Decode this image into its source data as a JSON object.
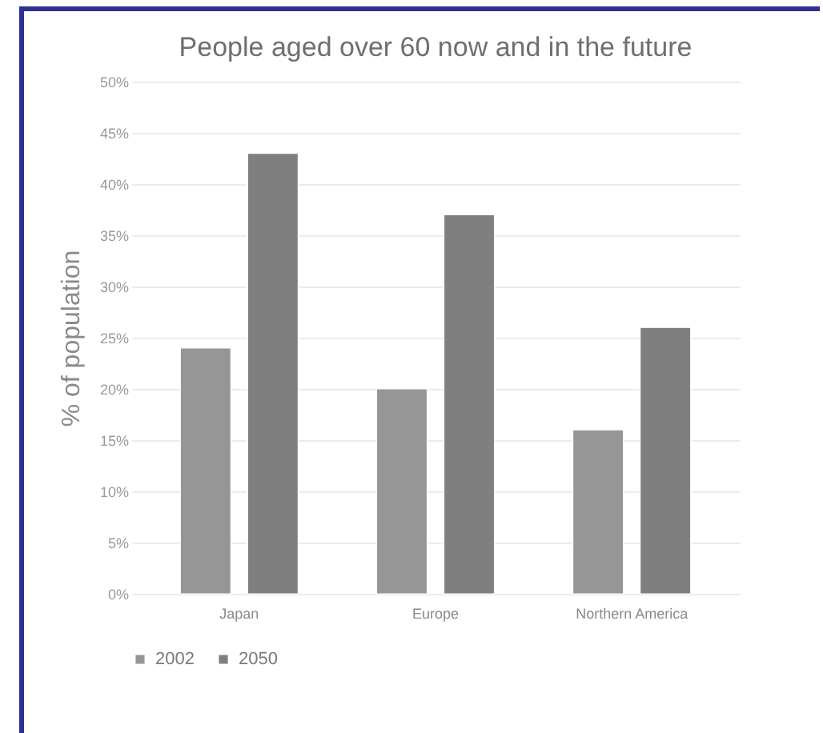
{
  "chart_data": {
    "type": "bar",
    "title": "People aged over 60 now and in the future",
    "ylabel": "% of population",
    "categories": [
      "Japan",
      "Europe",
      "Northern America"
    ],
    "series": [
      {
        "name": "2002",
        "color": "#969696",
        "values": [
          24,
          20,
          16
        ]
      },
      {
        "name": "2050",
        "color": "#7f7f7f",
        "values": [
          43,
          37,
          26
        ]
      }
    ],
    "ylim": [
      0,
      50
    ],
    "yticks": [
      {
        "value": 0,
        "label": "0%"
      },
      {
        "value": 5,
        "label": "5%"
      },
      {
        "value": 10,
        "label": "10%"
      },
      {
        "value": 15,
        "label": "15%"
      },
      {
        "value": 20,
        "label": "20%"
      },
      {
        "value": 25,
        "label": "25%"
      },
      {
        "value": 30,
        "label": "30%"
      },
      {
        "value": 35,
        "label": "35%"
      },
      {
        "value": 40,
        "label": "40%"
      },
      {
        "value": 45,
        "label": "45%"
      },
      {
        "value": 50,
        "label": "50%"
      }
    ],
    "grid": "y",
    "legend": "bottom"
  }
}
